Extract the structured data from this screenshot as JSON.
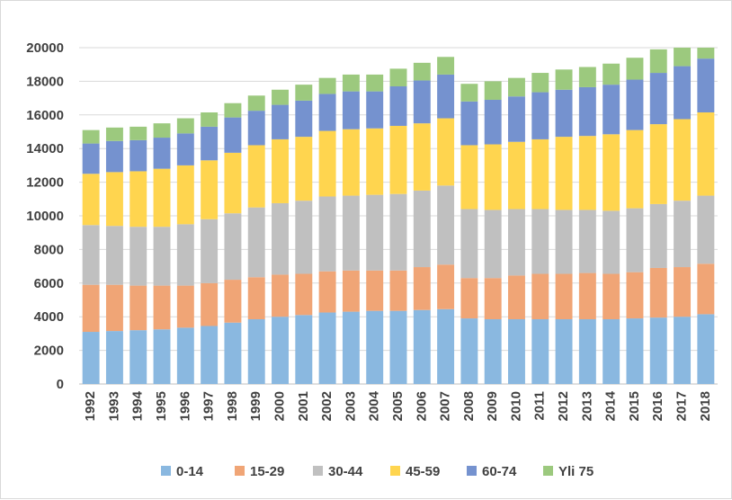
{
  "chart_data": {
    "type": "bar",
    "stacked": true,
    "title": "",
    "xlabel": "",
    "ylabel": "",
    "ylim": [
      0,
      20000
    ],
    "yticks": [
      0,
      2000,
      4000,
      6000,
      8000,
      10000,
      12000,
      14000,
      16000,
      18000,
      20000
    ],
    "grid": true,
    "legend_position": "bottom",
    "categories": [
      "1992",
      "1993",
      "1994",
      "1995",
      "1996",
      "1997",
      "1998",
      "1999",
      "2000",
      "2001",
      "2002",
      "2003",
      "2004",
      "2005",
      "2006",
      "2007",
      "2008",
      "2009",
      "2010",
      "2011",
      "2012",
      "2013",
      "2014",
      "2015",
      "2016",
      "2017",
      "2018"
    ],
    "series": [
      {
        "name": "0-14",
        "color": "#8ab8e0",
        "values": [
          3100,
          3150,
          3200,
          3250,
          3350,
          3450,
          3650,
          3850,
          4000,
          4100,
          4250,
          4300,
          4350,
          4350,
          4400,
          4450,
          3900,
          3850,
          3850,
          3850,
          3850,
          3850,
          3850,
          3900,
          3950,
          4000,
          4150
        ]
      },
      {
        "name": "15-29",
        "color": "#f0a576",
        "values": [
          2800,
          2750,
          2650,
          2600,
          2500,
          2550,
          2550,
          2500,
          2500,
          2450,
          2450,
          2450,
          2400,
          2400,
          2550,
          2650,
          2400,
          2450,
          2600,
          2700,
          2700,
          2750,
          2700,
          2750,
          2950,
          2950,
          3000
        ]
      },
      {
        "name": "30-44",
        "color": "#c0c0c0",
        "values": [
          3550,
          3500,
          3500,
          3500,
          3650,
          3800,
          3950,
          4150,
          4250,
          4350,
          4450,
          4450,
          4500,
          4550,
          4550,
          4700,
          4100,
          4050,
          3950,
          3850,
          3800,
          3750,
          3750,
          3800,
          3800,
          3950,
          4050
        ]
      },
      {
        "name": "45-59",
        "color": "#ffd54f",
        "values": [
          3050,
          3200,
          3300,
          3450,
          3500,
          3500,
          3600,
          3700,
          3800,
          3800,
          3900,
          3950,
          3950,
          4050,
          4000,
          4000,
          3800,
          3900,
          4000,
          4150,
          4350,
          4400,
          4550,
          4650,
          4750,
          4850,
          4950
        ]
      },
      {
        "name": "60-74",
        "color": "#7592cf",
        "values": [
          1800,
          1850,
          1850,
          1850,
          1900,
          2000,
          2100,
          2050,
          2050,
          2150,
          2200,
          2250,
          2200,
          2350,
          2550,
          2600,
          2600,
          2650,
          2700,
          2800,
          2800,
          2900,
          2950,
          3000,
          3050,
          3150,
          3200
        ]
      },
      {
        "name": "Yli 75",
        "color": "#9cc97e",
        "values": [
          800,
          800,
          800,
          850,
          900,
          850,
          850,
          900,
          900,
          950,
          950,
          1000,
          1000,
          1050,
          1050,
          1050,
          1050,
          1100,
          1100,
          1150,
          1200,
          1200,
          1250,
          1300,
          1400,
          1100,
          650
        ]
      }
    ]
  }
}
